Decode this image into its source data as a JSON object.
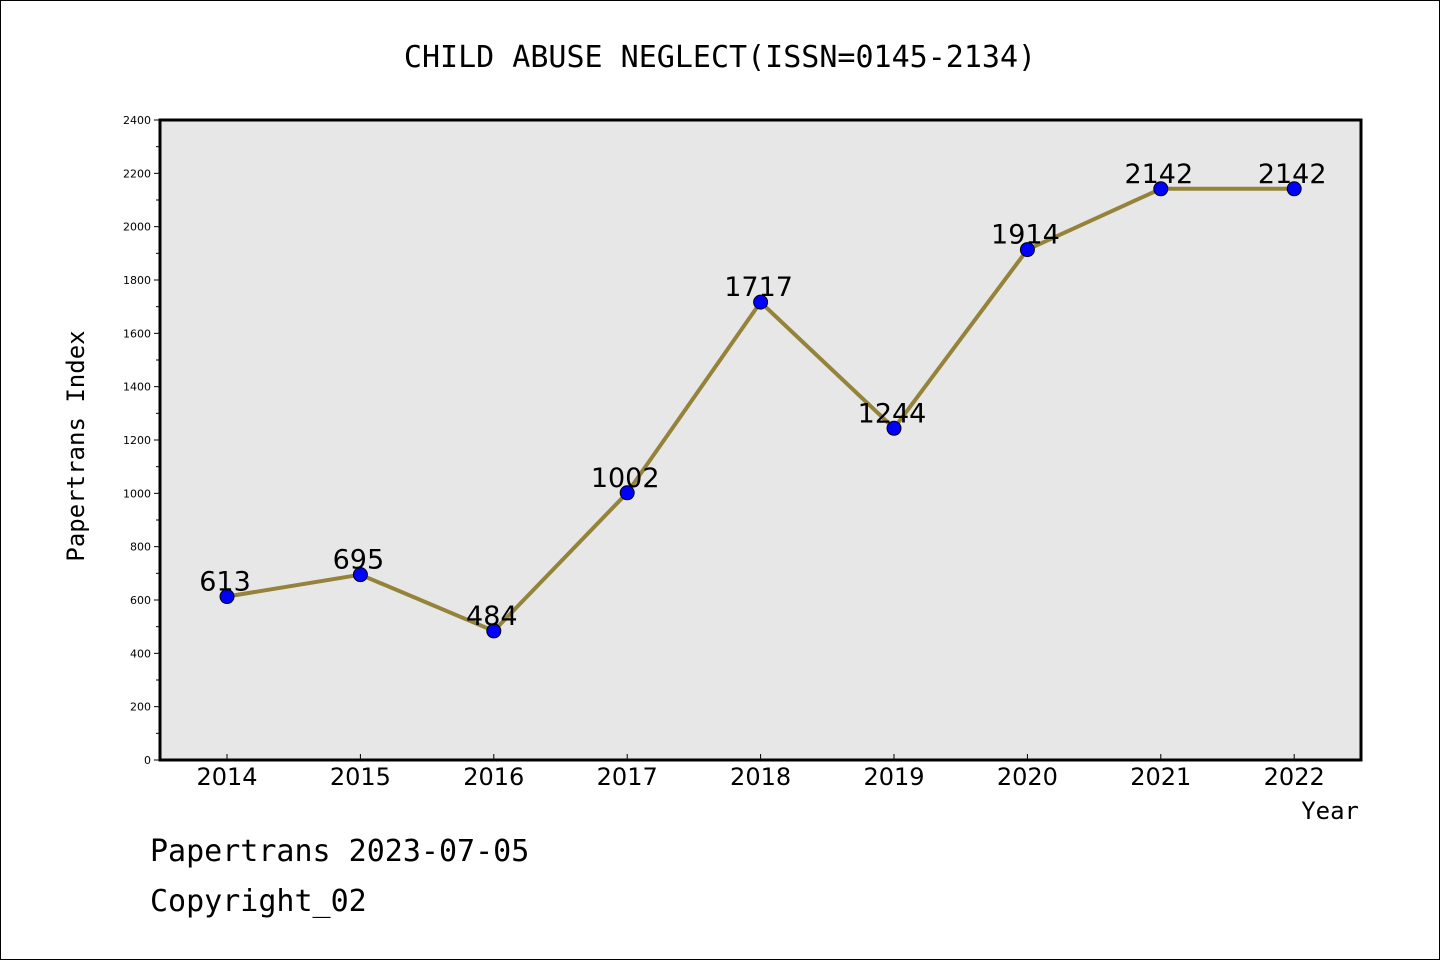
{
  "chart_data": {
    "type": "line",
    "title": "CHILD ABUSE NEGLECT(ISSN=0145-2134)",
    "xlabel": "Year",
    "ylabel": "Papertrans Index",
    "categories": [
      "2014",
      "2015",
      "2016",
      "2017",
      "2018",
      "2019",
      "2020",
      "2021",
      "2022"
    ],
    "series": [
      {
        "values": [
          613,
          695,
          484,
          1002,
          1717,
          1244,
          1914,
          2142,
          2142
        ]
      }
    ],
    "data_labels": [
      "613",
      "695",
      "484",
      "1002",
      "1717",
      "1244",
      "1914",
      "2142",
      "2142"
    ],
    "ylim": [
      0,
      2400
    ],
    "yticks": [
      "0",
      "200",
      "400",
      "600",
      "800",
      "1000",
      "1200",
      "1400",
      "1600",
      "1800",
      "2000",
      "2200",
      "2400"
    ],
    "grid": false,
    "colors": {
      "line": "#948339",
      "marker": "#0000ff",
      "plot_background": "#e7e7e7"
    }
  },
  "footer": {
    "line1": "Papertrans 2023-07-05",
    "line2": "Copyright_02"
  }
}
